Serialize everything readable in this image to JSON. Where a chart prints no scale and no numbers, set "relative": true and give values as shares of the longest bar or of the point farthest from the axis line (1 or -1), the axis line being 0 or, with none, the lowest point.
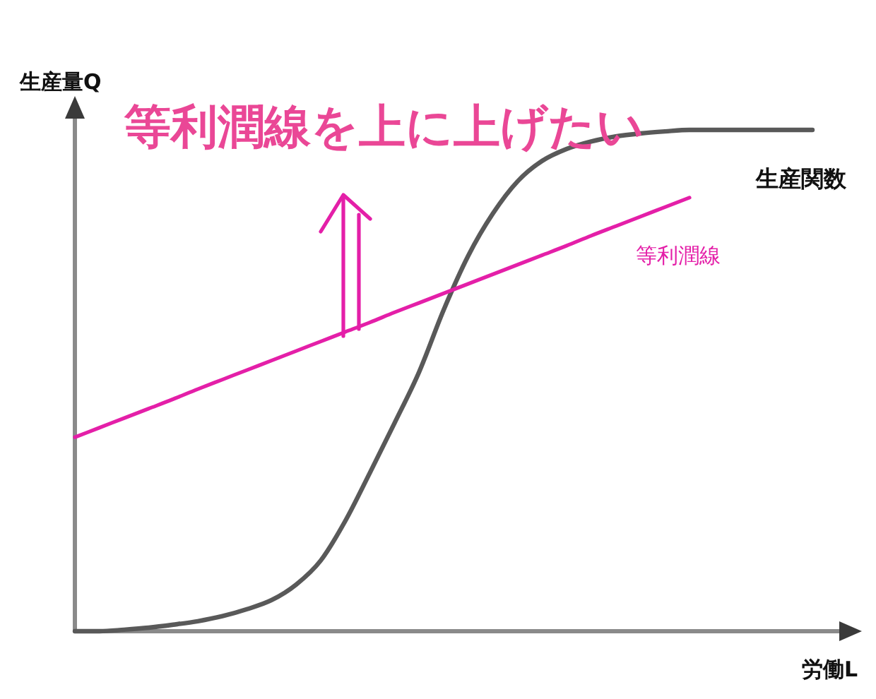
{
  "chart_data": {
    "type": "line",
    "relative": true,
    "title": "等利潤線を上に上げたい",
    "xlabel": "労働L",
    "ylabel": "生産量Q",
    "categories": [
      null,
      null,
      null,
      null,
      null,
      null,
      null,
      null,
      null,
      null,
      null,
      null,
      null,
      null,
      null,
      null,
      null,
      null,
      null,
      null,
      null,
      null,
      null,
      null,
      null,
      null,
      null,
      null,
      null,
      null,
      null
    ],
    "series": [
      {
        "name": "生産関数",
        "color": "#595959",
        "values": [
          0,
          0,
          0.003,
          0.007,
          0.013,
          0.02,
          0.03,
          0.044,
          0.062,
          0.093,
          0.141,
          0.22,
          0.316,
          0.415,
          0.517,
          0.641,
          0.749,
          0.833,
          0.897,
          0.938,
          0.962,
          0.977,
          0.987,
          0.993,
          0.997,
          1,
          1,
          1,
          1,
          1,
          1
        ]
      },
      {
        "name": "等利潤線",
        "color": "#e41fa8",
        "values": [
          0.387,
          0.406,
          0.425,
          0.444,
          0.463,
          0.483,
          0.502,
          0.521,
          0.54,
          0.559,
          0.578,
          0.597,
          0.616,
          0.636,
          0.655,
          0.674,
          0.693,
          0.712,
          0.731,
          0.75,
          0.769,
          0.789,
          0.808,
          0.827,
          0.846,
          0.865,
          null,
          null,
          null,
          null,
          null
        ]
      }
    ]
  }
}
